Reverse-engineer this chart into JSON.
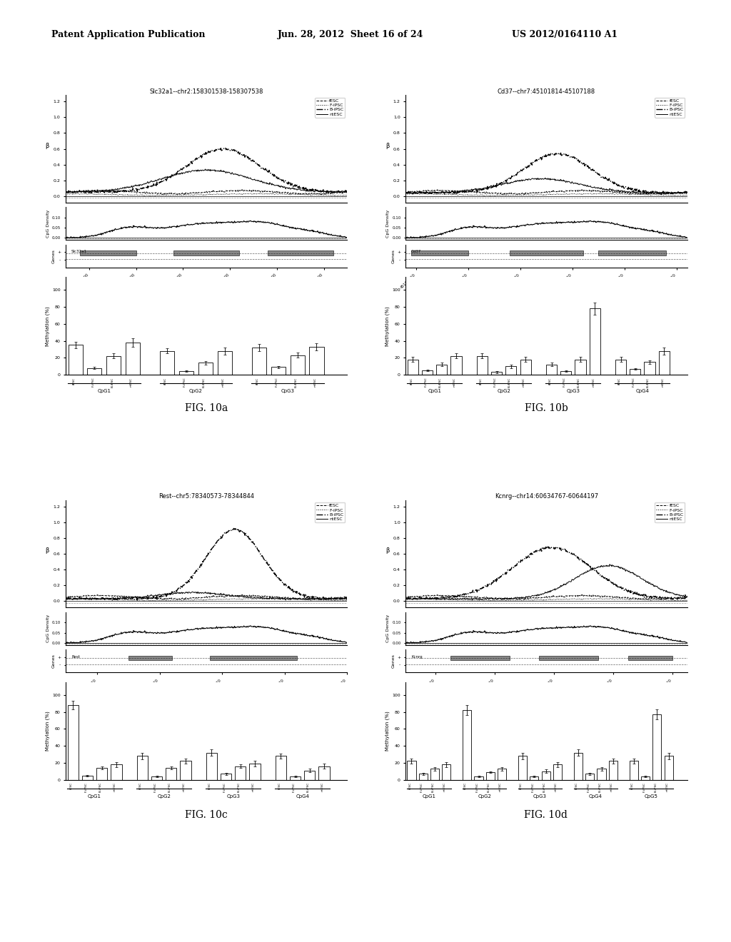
{
  "header_left": "Patent Application Publication",
  "header_center": "Jun. 28, 2012  Sheet 16 of 24",
  "header_right": "US 2012/0164110 A1",
  "fig10a_title": "Slc32a1--chr2:158301538-158307538",
  "fig10b_title": "Cd37--chr7:45101814-45107188",
  "fig10c_title": "Rest--chr5:78340573-78344844",
  "fig10d_title": "Kcnrg--chr14:60634767-60644197",
  "legend_labels": [
    "fESC",
    "F-iPSC",
    "B-iPSC",
    "ntESC"
  ],
  "background_color": "#ffffff",
  "text_color": "#000000",
  "fig10a_xlim": [
    158301500,
    158307500
  ],
  "fig10b_xlim": [
    45101800,
    45107200
  ],
  "fig10c_xlim": [
    78340500,
    78345000
  ],
  "fig10d_xlim": [
    60635000,
    60644500
  ],
  "fig10a_xticks": [
    158302000,
    158303000,
    158304000,
    158305000,
    158306000,
    158307000
  ],
  "fig10b_xticks": [
    45102000,
    45103000,
    45104000,
    45105000,
    45106000,
    45107000
  ],
  "fig10c_xticks": [
    78341000,
    78342000,
    78343000,
    78344000,
    78345000
  ],
  "fig10d_xticks": [
    60636000,
    60638000,
    60640000,
    60642000,
    60644000
  ],
  "fig_labels": [
    "FIG. 10a",
    "FIG. 10b",
    "FIG. 10c",
    "FIG. 10d"
  ]
}
